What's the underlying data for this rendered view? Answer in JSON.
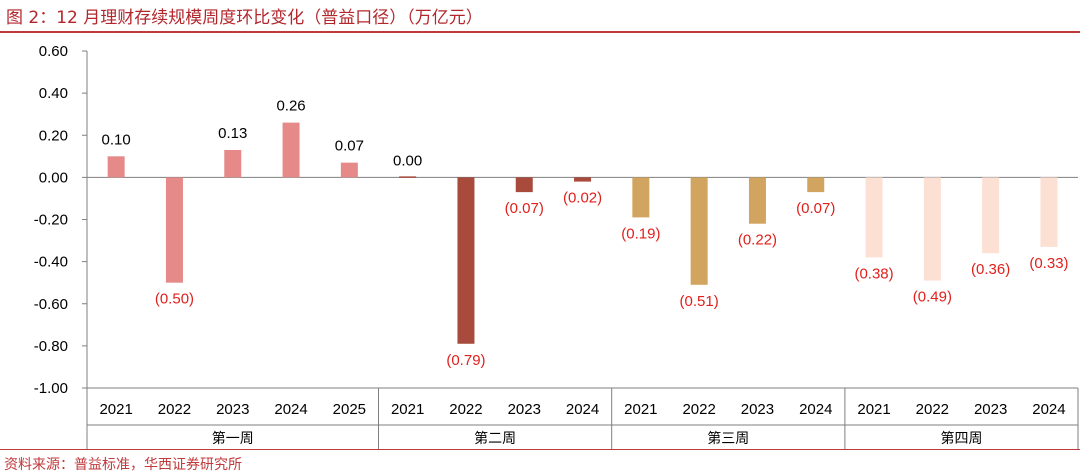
{
  "title": "图 2：12 月理财存续规模周度环比变化（普益口径）（万亿元）",
  "source": "资料来源：普益标准，华西证券研究所",
  "chart_data": {
    "type": "bar",
    "ylim": [
      -1.0,
      0.6
    ],
    "yticks": [
      "0.60",
      "0.40",
      "0.20",
      "0.00",
      "-0.20",
      "-0.40",
      "-0.60",
      "-0.80",
      "-1.00"
    ],
    "ytick_values": [
      0.6,
      0.4,
      0.2,
      0.0,
      -0.2,
      -0.4,
      -0.6,
      -0.8,
      -1.0
    ],
    "groups": [
      {
        "name": "第一周",
        "color": "#e58a89",
        "categories": [
          "2021",
          "2022",
          "2023",
          "2024",
          "2025"
        ],
        "values": [
          0.1,
          -0.5,
          0.13,
          0.26,
          0.07
        ],
        "labels": [
          "0.10",
          "(0.50)",
          "0.13",
          "0.26",
          "0.07"
        ]
      },
      {
        "name": "第二周",
        "color": "#a84a3c",
        "categories": [
          "2021",
          "2022",
          "2023",
          "2024"
        ],
        "values": [
          0.0,
          -0.79,
          -0.07,
          -0.02
        ],
        "labels": [
          "0.00",
          "(0.79)",
          "(0.07)",
          "(0.02)"
        ]
      },
      {
        "name": "第三周",
        "color": "#d1a55f",
        "categories": [
          "2021",
          "2022",
          "2023",
          "2024"
        ],
        "values": [
          -0.19,
          -0.51,
          -0.22,
          -0.07
        ],
        "labels": [
          "(0.19)",
          "(0.51)",
          "(0.22)",
          "(0.07)"
        ]
      },
      {
        "name": "第四周",
        "color": "#fbe0d3",
        "categories": [
          "2021",
          "2022",
          "2023",
          "2024"
        ],
        "values": [
          -0.38,
          -0.49,
          -0.36,
          -0.33
        ],
        "labels": [
          "(0.38)",
          "(0.49)",
          "(0.36)",
          "(0.33)"
        ]
      }
    ],
    "label_colors": {
      "positive": "#000000",
      "negative": "#e0201c"
    },
    "xlabel": "",
    "ylabel": ""
  }
}
